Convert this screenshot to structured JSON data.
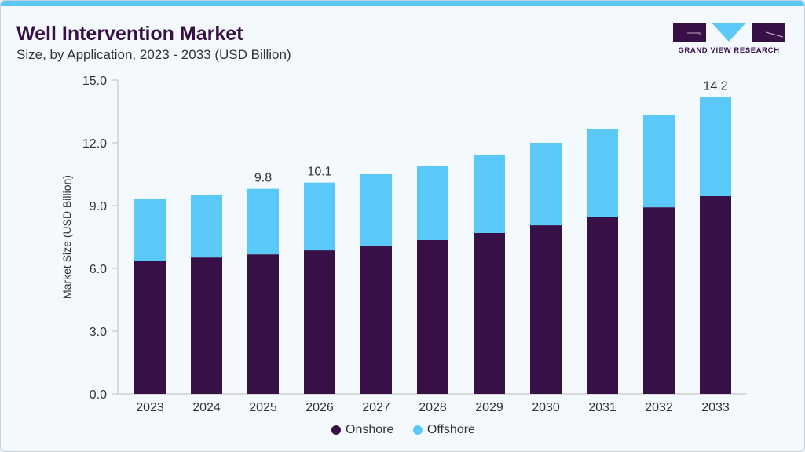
{
  "header": {
    "title": "Well Intervention Market",
    "subtitle": "Size, by Application, 2023 - 2033 (USD Billion)"
  },
  "logo": {
    "text": "GRAND VIEW RESEARCH"
  },
  "colors": {
    "onshore": "#371047",
    "offshore": "#5bc9f7",
    "accent": "#5bc9f7"
  },
  "chart_data": {
    "type": "bar",
    "stacked": true,
    "title": "Well Intervention Market",
    "subtitle": "Size, by Application, 2023 - 2033 (USD Billion)",
    "xlabel": "",
    "ylabel": "Market Size (USD Billion)",
    "ylim": [
      0,
      15
    ],
    "yticks": [
      "0.0",
      "3.0",
      "6.0",
      "9.0",
      "12.0",
      "15.0"
    ],
    "categories": [
      "2023",
      "2024",
      "2025",
      "2026",
      "2027",
      "2028",
      "2029",
      "2030",
      "2031",
      "2032",
      "2033"
    ],
    "series": [
      {
        "name": "Onshore",
        "values": [
          6.37,
          6.52,
          6.67,
          6.86,
          7.09,
          7.35,
          7.69,
          8.06,
          8.44,
          8.92,
          9.45
        ]
      },
      {
        "name": "Offshore",
        "values": [
          2.93,
          3.0,
          3.13,
          3.24,
          3.41,
          3.55,
          3.75,
          3.94,
          4.2,
          4.43,
          4.75
        ]
      }
    ],
    "data_labels": [
      {
        "category": "2025",
        "text": "9.8"
      },
      {
        "category": "2026",
        "text": "10.1"
      },
      {
        "category": "2033",
        "text": "14.2"
      }
    ],
    "grid": false,
    "legend": "bottom"
  }
}
